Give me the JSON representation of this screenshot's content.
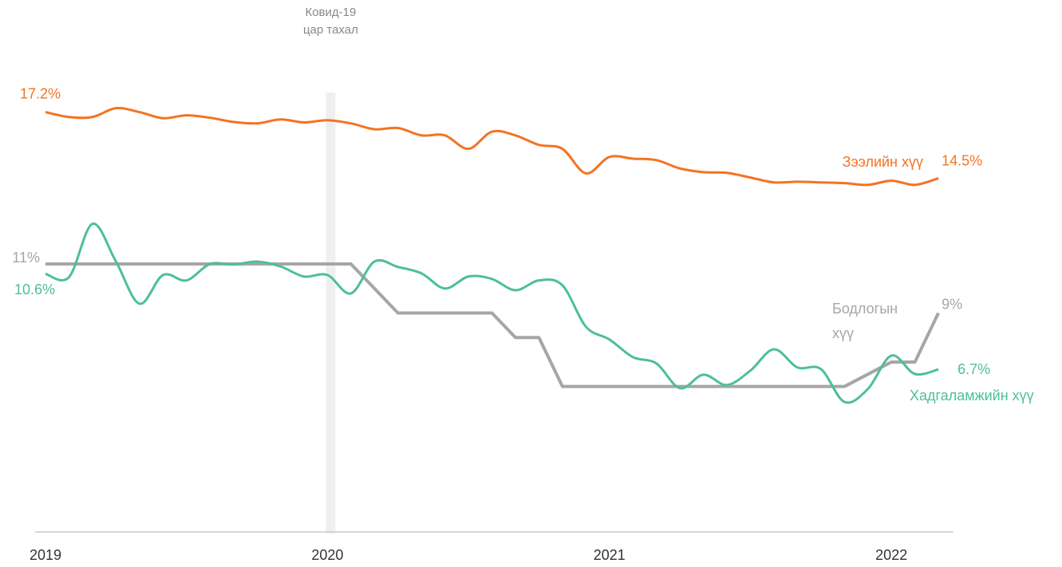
{
  "chart_data": {
    "type": "line",
    "annotation": [
      "Ковид-19",
      "цар тахал"
    ],
    "annotation_category": "2020",
    "categories": [
      "2019",
      null,
      null,
      null,
      null,
      null,
      null,
      null,
      null,
      null,
      null,
      null,
      "2020",
      null,
      null,
      null,
      null,
      null,
      null,
      null,
      null,
      null,
      null,
      null,
      "2021",
      null,
      null,
      null,
      null,
      null,
      null,
      null,
      null,
      null,
      null,
      null,
      "2022",
      null,
      null
    ],
    "ylim": [
      0,
      18
    ],
    "series": [
      {
        "name": "Зээлийн хүү",
        "color": "#f47321",
        "smooth": true,
        "values": [
          17.2,
          17.0,
          17.0,
          17.36,
          17.2,
          16.95,
          17.07,
          16.97,
          16.8,
          16.74,
          16.9,
          16.78,
          16.87,
          16.74,
          16.5,
          16.55,
          16.25,
          16.25,
          15.7,
          16.4,
          16.25,
          15.86,
          15.7,
          14.7,
          15.37,
          15.3,
          15.24,
          14.9,
          14.75,
          14.72,
          14.53,
          14.33,
          14.36,
          14.33,
          14.3,
          14.23,
          14.4,
          14.23,
          14.5
        ],
        "value_labels": [
          "17.2%",
          null,
          null,
          null,
          null,
          null,
          null,
          null,
          null,
          null,
          null,
          null,
          null,
          null,
          null,
          null,
          null,
          null,
          null,
          null,
          null,
          null,
          null,
          null,
          null,
          null,
          null,
          null,
          null,
          null,
          null,
          null,
          null,
          null,
          null,
          null,
          null,
          null,
          "14.5%"
        ]
      },
      {
        "name": "Бодлогын хүү",
        "color": "#a6a6a6",
        "smooth": false,
        "values": [
          11,
          11,
          11,
          11,
          11,
          11,
          11,
          11,
          11,
          11,
          11,
          11,
          11,
          11,
          10,
          9,
          9,
          9,
          9,
          9,
          8,
          8,
          6,
          6,
          6,
          6,
          6,
          6,
          6,
          6,
          6,
          6,
          6,
          6,
          6,
          6.5,
          7,
          7,
          9
        ],
        "value_labels": [
          "11%",
          null,
          null,
          null,
          null,
          null,
          null,
          null,
          null,
          null,
          null,
          null,
          null,
          null,
          null,
          null,
          null,
          null,
          null,
          null,
          null,
          null,
          null,
          null,
          null,
          null,
          null,
          null,
          null,
          null,
          null,
          null,
          null,
          null,
          null,
          null,
          null,
          null,
          "9%"
        ]
      },
      {
        "name": "Хадгаламжийн хүү",
        "color": "#4dbf97",
        "smooth": true,
        "values": [
          10.6,
          10.46,
          12.64,
          11.1,
          9.38,
          10.55,
          10.33,
          11.0,
          10.98,
          11.1,
          10.9,
          10.49,
          10.55,
          9.8,
          11.1,
          10.88,
          10.62,
          10.0,
          10.49,
          10.39,
          9.93,
          10.33,
          10.13,
          8.44,
          7.92,
          7.2,
          6.94,
          5.93,
          6.48,
          6.06,
          6.65,
          7.52,
          6.78,
          6.71,
          5.37,
          5.9,
          7.26,
          6.51,
          6.7
        ],
        "value_labels": [
          "10.6%",
          null,
          null,
          null,
          null,
          null,
          null,
          null,
          null,
          null,
          null,
          null,
          null,
          null,
          null,
          null,
          null,
          null,
          null,
          null,
          null,
          null,
          null,
          null,
          null,
          null,
          null,
          null,
          null,
          null,
          null,
          null,
          null,
          null,
          null,
          null,
          null,
          null,
          "6.7%"
        ]
      }
    ]
  }
}
